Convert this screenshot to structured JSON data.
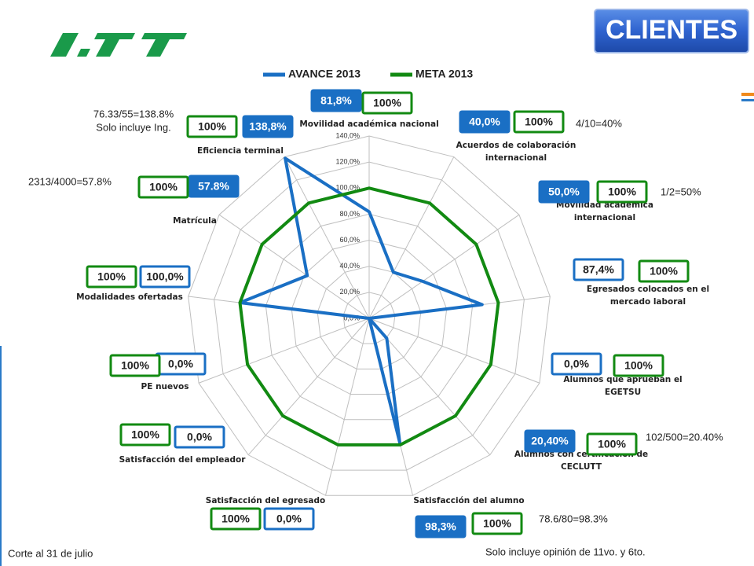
{
  "chart_data": {
    "type": "radar",
    "header": "CLIENTES",
    "categories": [
      "Movilidad académica nacional",
      "Acuerdos de colaboración internacional",
      "Movilidad académica internacional",
      "Egresados colocados en el mercado laboral",
      "Alumnos que aprueban el EGETSU",
      "Alumnos con certificacion de CECLUTT",
      "Satisfacción del alumno",
      "Satisfacción del egresado",
      "Satisfacción del empleador",
      "PE nuevos",
      "Modalidades ofertadas",
      "Matrícula",
      "Eficiencia terminal"
    ],
    "series": [
      {
        "name": "AVANCE 2013",
        "color": "#1a6fc4",
        "values": [
          81.8,
          40.0,
          50.0,
          87.4,
          0,
          20.4,
          98.3,
          0,
          0,
          0,
          100,
          57.8,
          138.8
        ],
        "value_labels": [
          "81,8%",
          "40,0%",
          "50,0%",
          "87,4%",
          "0,0%",
          "20,40%",
          "98,3%",
          "0,0%",
          "0,0%",
          "0,0%",
          "100,0%",
          "57.8%",
          "138,8%"
        ]
      },
      {
        "name": "META 2013",
        "color": "#128a12",
        "values": [
          100,
          100,
          100,
          100,
          100,
          100,
          100,
          100,
          100,
          100,
          100,
          100,
          100
        ],
        "value_labels": [
          "100%",
          "100%",
          "100%",
          "100%",
          "100%",
          "100%",
          "100%",
          "100%",
          "100%",
          "100%",
          "100%",
          "100%",
          "100%"
        ]
      }
    ],
    "rlim": [
      0,
      140
    ],
    "rticks": [
      {
        "value": 0,
        "label": "0,0%"
      },
      {
        "value": 20,
        "label": "20,0%"
      },
      {
        "value": 40,
        "label": "40,0%"
      },
      {
        "value": 60,
        "label": "60,0%"
      },
      {
        "value": 80,
        "label": "80,0%"
      },
      {
        "value": 100,
        "label": "100,0%"
      },
      {
        "value": 120,
        "label": "120,0%"
      },
      {
        "value": 140,
        "label": "140,0%"
      }
    ],
    "grid": true,
    "legend": "top",
    "annotations": [
      "76.33/55=138.8%",
      "Solo incluye Ing.",
      "4/10=40%",
      "2313/4000=57.8%",
      "1/2=50%",
      "102/500=20.40%",
      "78.6/80=98.3%",
      "Solo incluye opinión de 11vo. y 6to.",
      "Corte al 31 de julio"
    ]
  }
}
